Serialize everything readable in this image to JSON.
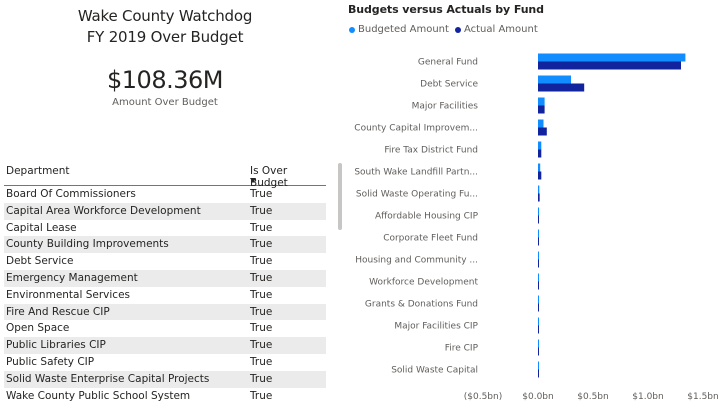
{
  "header": {
    "title_line1": "Wake County Watchdog",
    "title_line2": "FY 2019 Over Budget"
  },
  "kpi": {
    "value": "$108.36M",
    "label": "Amount Over Budget"
  },
  "table": {
    "columns": [
      "Department",
      "Is Over Budget"
    ],
    "rows": [
      {
        "department": "Board Of Commissioners",
        "over": "True"
      },
      {
        "department": "Capital Area Workforce Development",
        "over": "True"
      },
      {
        "department": "Capital Lease",
        "over": "True"
      },
      {
        "department": "County Building Improvements",
        "over": "True"
      },
      {
        "department": "Debt Service",
        "over": "True"
      },
      {
        "department": "Emergency Management",
        "over": "True"
      },
      {
        "department": "Environmental Services",
        "over": "True"
      },
      {
        "department": "Fire And Rescue CIP",
        "over": "True"
      },
      {
        "department": "Open Space",
        "over": "True"
      },
      {
        "department": "Public Libraries CIP",
        "over": "True"
      },
      {
        "department": "Public Safety CIP",
        "over": "True"
      },
      {
        "department": "Solid Waste Enterprise Capital Projects",
        "over": "True"
      },
      {
        "department": "Wake County Public School System",
        "over": "True"
      }
    ]
  },
  "chart_data": {
    "type": "bar",
    "orientation": "horizontal",
    "title": "Budgets versus Actuals by Fund",
    "categories": [
      "General Fund",
      "Debt Service",
      "Major Facilities",
      "County Capital Improvem...",
      "Fire Tax District Fund",
      "South Wake Landfill Partn...",
      "Solid Waste Operating Fu...",
      "Affordable Housing CIP",
      "Corporate Fleet Fund",
      "Housing and Community ...",
      "Workforce Development",
      "Grants & Donations Fund",
      "Major Facilities CIP",
      "Fire CIP",
      "Solid Waste Capital"
    ],
    "series": [
      {
        "name": "Budgeted Amount",
        "color": "#118dff",
        "values": [
          1.34,
          0.3,
          0.06,
          0.05,
          0.03,
          0.02,
          0.012,
          0.01,
          0.008,
          0.006,
          0.005,
          0.004,
          0.003,
          0.002,
          0.002
        ]
      },
      {
        "name": "Actual Amount",
        "color": "#12239e",
        "values": [
          1.3,
          0.42,
          0.06,
          0.08,
          0.03,
          0.03,
          0.015,
          0.008,
          0.007,
          0.005,
          0.004,
          0.003,
          0.003,
          0.002,
          0.002
        ]
      }
    ],
    "xlim": [
      -0.5,
      1.5
    ],
    "xticks": [
      -0.5,
      0.0,
      0.5,
      1.0,
      1.5
    ],
    "xtick_labels": [
      "($0.5bn)",
      "$0.0bn",
      "$0.5bn",
      "$1.0bn",
      "$1.5bn"
    ],
    "grid": false,
    "legend_position": "top-left"
  }
}
